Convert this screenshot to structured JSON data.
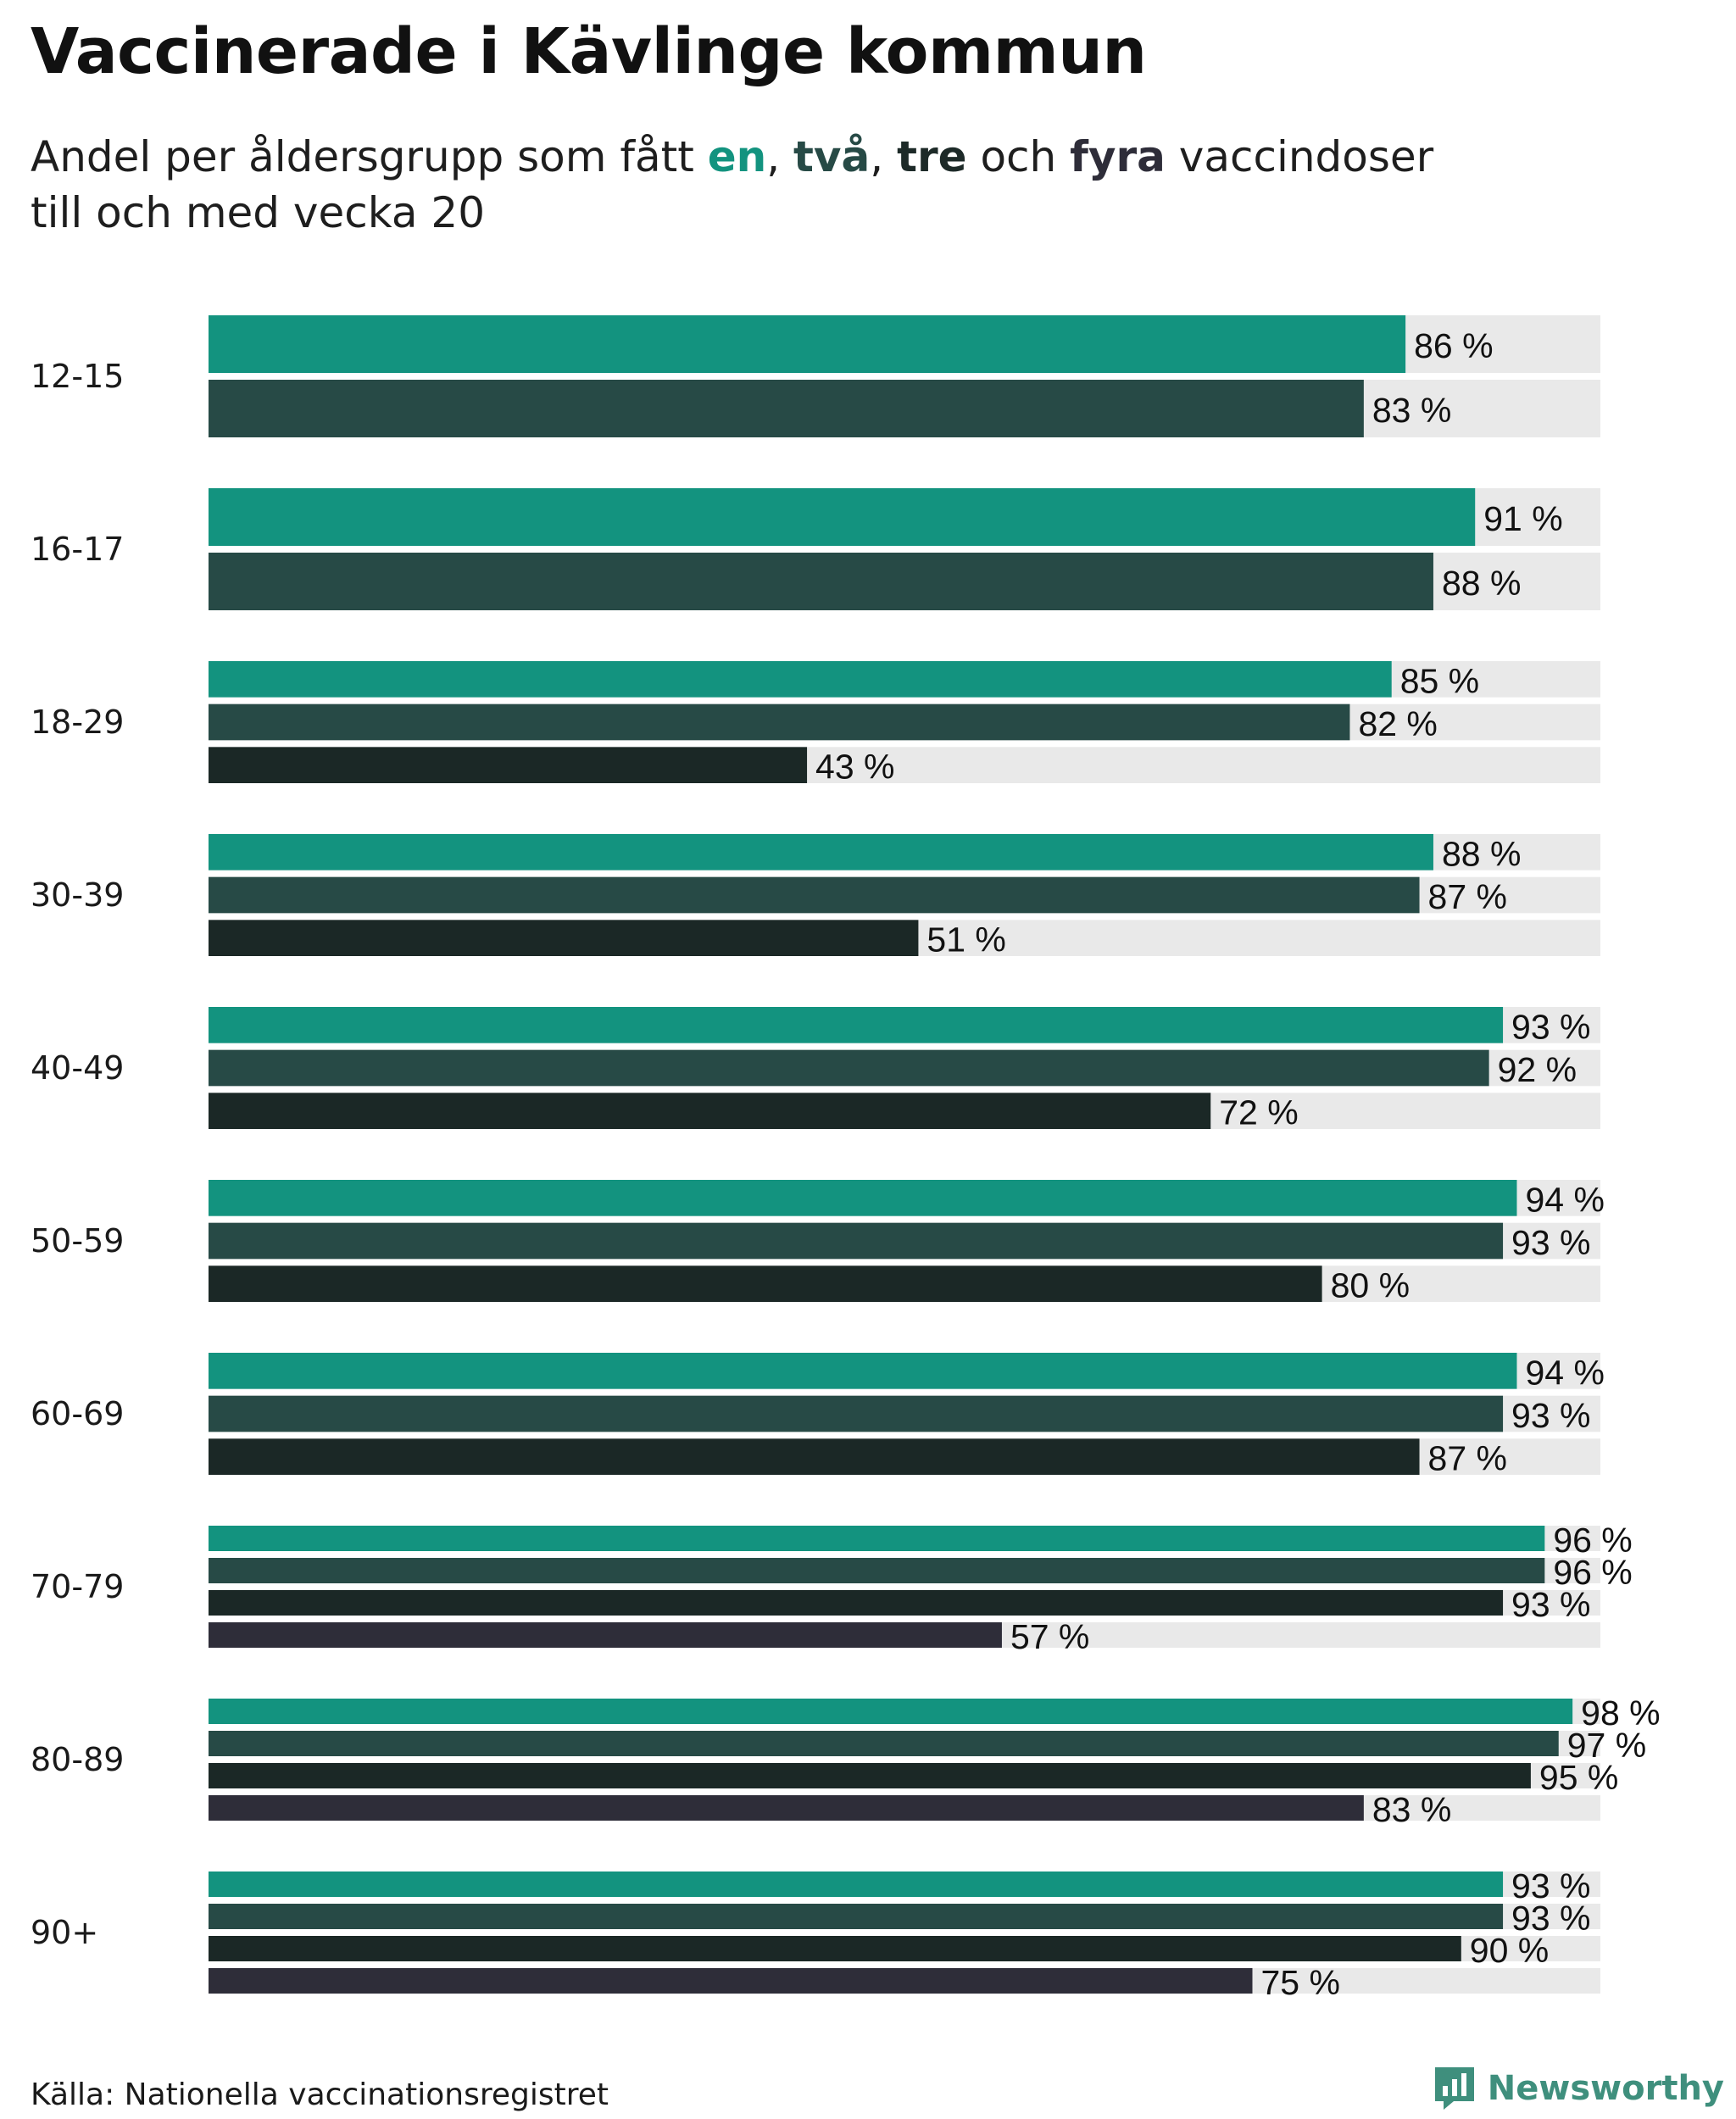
{
  "title": "Vaccinerade i Kävlinge kommun",
  "subtitle": {
    "pre": "Andel per åldersgrupp som fått ",
    "en": "en",
    "sep1": ", ",
    "tva": "två",
    "sep2": ", ",
    "tre": "tre",
    "och": " och ",
    "fyra": "fyra",
    "post": " vaccindoser",
    "line2": "till och med vecka 20"
  },
  "source": "Källa: Nationella vaccinationsregistret",
  "brand": "Newsworthy",
  "icons": {
    "brand_logo": "newsworthy-logo-icon"
  },
  "colors": {
    "dose1": "#13937f",
    "dose2": "#274a46",
    "dose3": "#1b2826",
    "dose4": "#2e2d39",
    "track": "#e9e9e9"
  },
  "chart_data": {
    "type": "bar",
    "orientation": "horizontal",
    "title": "Vaccinerade i Kävlinge kommun",
    "subtitle": "Andel per åldersgrupp som fått en, två, tre och fyra vaccindoser till och med vecka 20",
    "xlim": [
      0,
      100
    ],
    "value_suffix": " %",
    "grid": false,
    "legend": "colored words in subtitle",
    "categories": [
      "12-15",
      "16-17",
      "18-29",
      "30-39",
      "40-49",
      "50-59",
      "60-69",
      "70-79",
      "80-89",
      "90+"
    ],
    "series": [
      {
        "name": "en",
        "values": [
          86,
          91,
          85,
          88,
          93,
          94,
          94,
          96,
          98,
          93
        ]
      },
      {
        "name": "två",
        "values": [
          83,
          88,
          82,
          87,
          92,
          93,
          93,
          96,
          97,
          93
        ]
      },
      {
        "name": "tre",
        "values": [
          null,
          null,
          43,
          51,
          72,
          80,
          87,
          93,
          95,
          90
        ]
      },
      {
        "name": "fyra",
        "values": [
          null,
          null,
          null,
          null,
          null,
          null,
          null,
          57,
          83,
          75
        ]
      }
    ]
  }
}
